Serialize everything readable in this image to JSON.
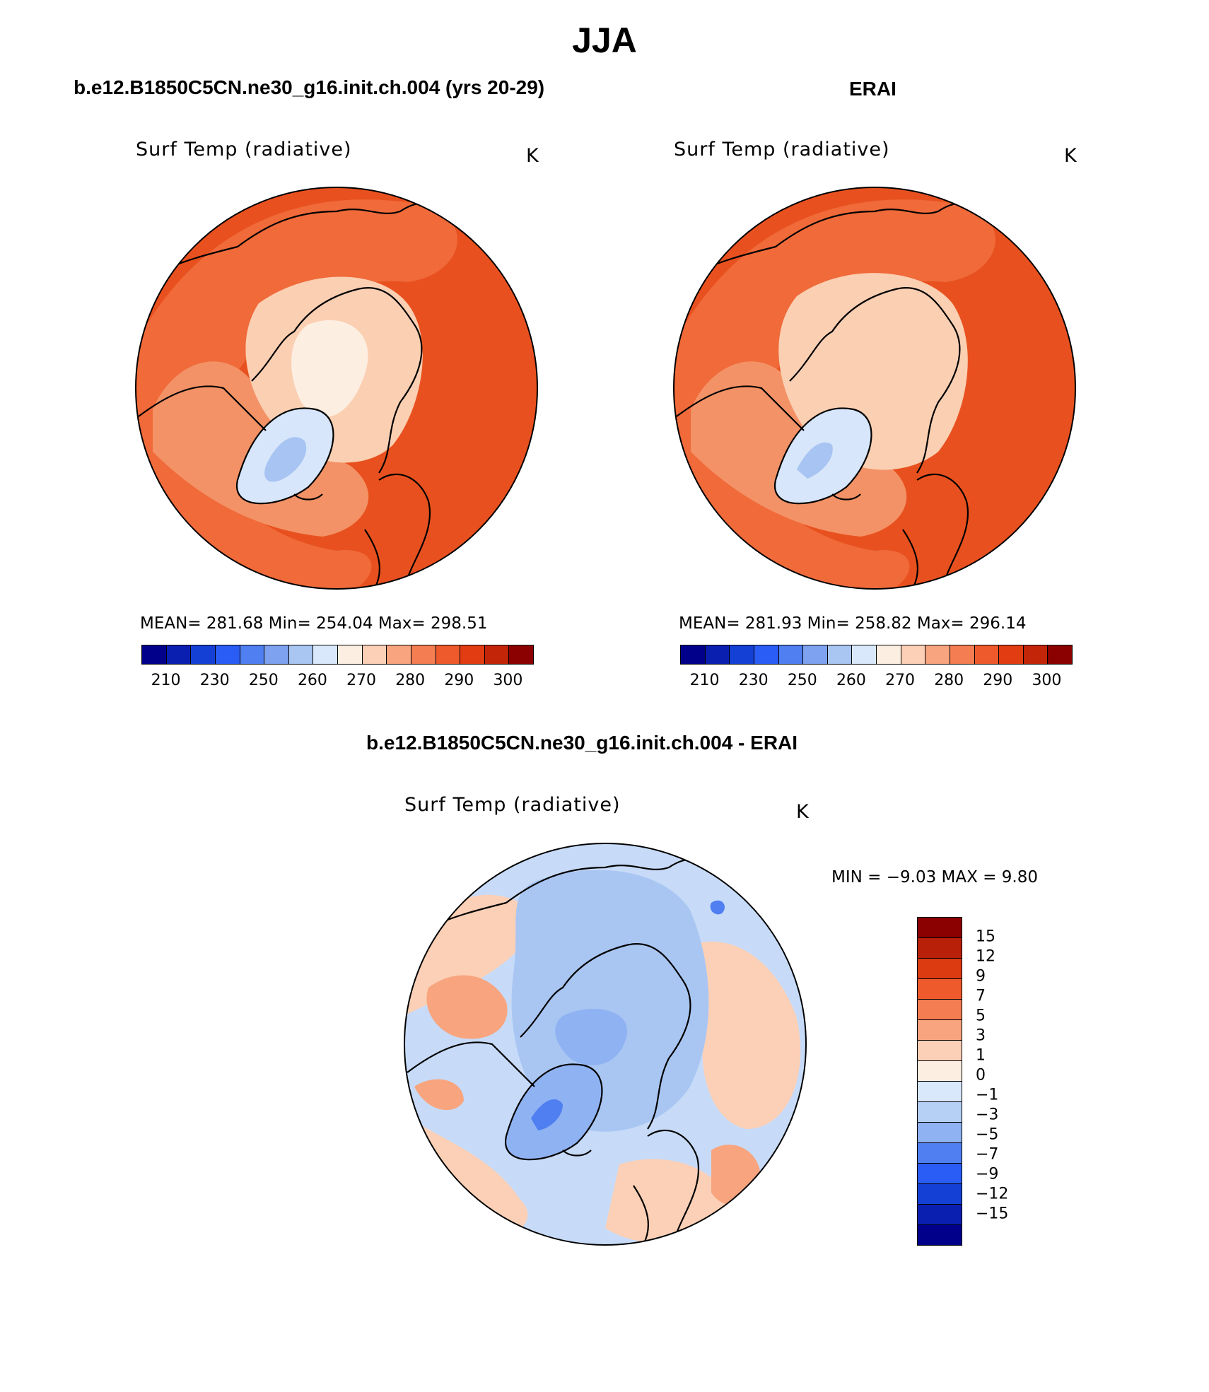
{
  "figure": {
    "title": "JJA"
  },
  "panels": [
    {
      "title": "b.e12.B1850C5CN.ne30_g16.init.ch.004 (yrs 20-29)",
      "variable": "Surf Temp (radiative)",
      "units": "K",
      "stats": "MEAN=  281.68    Min=  254.04    Max=  298.51"
    },
    {
      "title": "ERAI",
      "variable": "Surf Temp (radiative)",
      "units": "K",
      "stats": "MEAN=  281.93    Min=  258.82    Max=  296.14"
    },
    {
      "title": "b.e12.B1850C5CN.ne30_g16.init.ch.004 - ERAI",
      "variable": "Surf Temp (radiative)",
      "units": "K",
      "stats": "MIN =   −9.03  MAX =     9.80"
    }
  ],
  "colorbars": {
    "absolute": {
      "colors": [
        "#00008b",
        "#0a1fb0",
        "#1440d6",
        "#2a5df5",
        "#4f7ff0",
        "#7ea2ef",
        "#a9c6f3",
        "#d9e8fb",
        "#fdeee2",
        "#fbd0b6",
        "#f8a57f",
        "#f47d52",
        "#ee5a2c",
        "#e23c12",
        "#c22508",
        "#8b0000"
      ],
      "tick_labels": [
        "210",
        "230",
        "250",
        "260",
        "270",
        "280",
        "290",
        "300"
      ]
    },
    "difference": {
      "colors": [
        "#8b0000",
        "#b8200a",
        "#dc3a10",
        "#ee5a2c",
        "#f47d52",
        "#f8a57f",
        "#fbd0b6",
        "#fdeee2",
        "#d9e8fb",
        "#b6d0f5",
        "#8fb2f2",
        "#4f7ff0",
        "#2a5df5",
        "#1440d6",
        "#0a1fb0",
        "#00008b"
      ],
      "tick_labels": [
        "15",
        "12",
        "9",
        "7",
        "5",
        "3",
        "1",
        "0",
        "−1",
        "−3",
        "−5",
        "−7",
        "−9",
        "−12",
        "−15"
      ]
    }
  },
  "maps": [
    {
      "projection": "north-polar-stereographic",
      "ocean_color": "#e8511f",
      "zones": [
        {
          "color": "#f06a3a",
          "kind": "outer-ring"
        },
        {
          "color": "#f39266",
          "kind": "subarctic-land"
        },
        {
          "color": "#fbcfb2",
          "kind": "arctic-ocean"
        },
        {
          "color": "#fdeee2",
          "kind": "central-arctic"
        },
        {
          "color": "#d7e6fa",
          "kind": "greenland"
        },
        {
          "color": "#a7c4f2",
          "kind": "greenland-interior"
        }
      ]
    },
    {
      "projection": "north-polar-stereographic",
      "ocean_color": "#e8511f",
      "zones": [
        {
          "color": "#f06a3a",
          "kind": "outer-ring"
        },
        {
          "color": "#f39266",
          "kind": "subarctic-land"
        },
        {
          "color": "#fbcfb2",
          "kind": "arctic-ocean"
        },
        {
          "color": "#fbcfb2",
          "kind": "central-arctic"
        },
        {
          "color": "#d7e6fa",
          "kind": "greenland"
        },
        {
          "color": "#a7c4f2",
          "kind": "greenland-interior"
        }
      ]
    },
    {
      "projection": "north-polar-stereographic",
      "ocean_color": "#c7dbf8",
      "zones": [
        {
          "color": "#fbd0b6",
          "kind": "outer-ring"
        },
        {
          "color": "#f8a57f",
          "kind": "subarctic-land"
        },
        {
          "color": "#a9c6f3",
          "kind": "arctic-ocean"
        },
        {
          "color": "#8fb2f2",
          "kind": "central-arctic"
        },
        {
          "color": "#8fb2f2",
          "kind": "greenland"
        },
        {
          "color": "#4f7ff0",
          "kind": "greenland-interior"
        }
      ]
    }
  ]
}
